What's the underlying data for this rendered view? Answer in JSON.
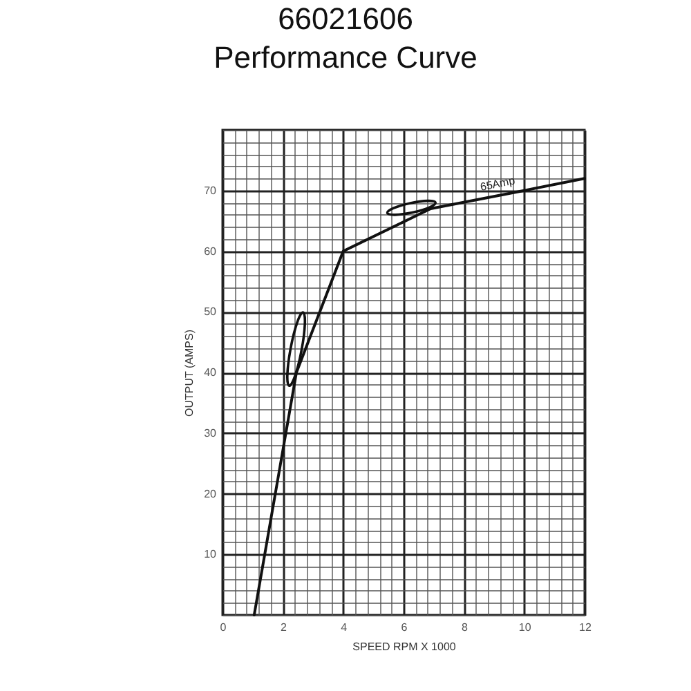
{
  "chart_data": {
    "type": "line",
    "title": "66021606",
    "subtitle": "Performance Curve",
    "xlabel": "SPEED RPM X 1000",
    "ylabel": "OUTPUT (AMPS)",
    "x": [
      1.05,
      1.75,
      2.45,
      4,
      6.9,
      10,
      12
    ],
    "series": [
      {
        "color": "#111111",
        "values": [
          0,
          20,
          40,
          60,
          67,
          70,
          72
        ]
      }
    ],
    "annotations": [
      "65Amp"
    ],
    "xlim": [
      0,
      12
    ],
    "ylim": [
      0,
      80
    ],
    "xticks": [
      0,
      {
        "value": 0.4,
        "label": null
      },
      {
        "value": 0.8,
        "label": null
      },
      {
        "value": 1.2,
        "label": null
      },
      {
        "value": 1.6,
        "label": null
      },
      2,
      {
        "value": 2.4,
        "label": null
      },
      {
        "value": 2.8,
        "label": null
      },
      {
        "value": 3.2,
        "label": null
      },
      {
        "value": 3.6,
        "label": null
      },
      4,
      {
        "value": 4.4,
        "label": null
      },
      {
        "value": 4.8,
        "label": null
      },
      {
        "value": 5.2,
        "label": null
      },
      {
        "value": 5.6,
        "label": null
      },
      6,
      {
        "value": 6.4,
        "label": null
      },
      {
        "value": 6.8,
        "label": null
      },
      {
        "value": 7.2,
        "label": null
      },
      {
        "value": 7.6,
        "label": null
      },
      8,
      {
        "value": 8.4,
        "label": null
      },
      {
        "value": 8.8,
        "label": null
      },
      {
        "value": 9.2,
        "label": null
      },
      {
        "value": 9.6,
        "label": null
      },
      10,
      {
        "value": 10.4,
        "label": null
      },
      {
        "value": 10.8,
        "label": null
      },
      {
        "value": 11.2,
        "label": null
      },
      {
        "value": 11.6,
        "label": null
      },
      12
    ],
    "yticks": [
      {
        "value": 0,
        "label": null
      },
      {
        "value": 2,
        "label": null
      },
      {
        "value": 4,
        "label": null
      },
      {
        "value": 6,
        "label": null
      },
      {
        "value": 8,
        "label": null
      },
      10,
      {
        "value": 12,
        "label": null
      },
      {
        "value": 14,
        "label": null
      },
      {
        "value": 16,
        "label": null
      },
      {
        "value": 18,
        "label": null
      },
      20,
      {
        "value": 22,
        "label": null
      },
      {
        "value": 24,
        "label": null
      },
      {
        "value": 26,
        "label": null
      },
      {
        "value": 28,
        "label": null
      },
      30,
      {
        "value": 32,
        "label": null
      },
      {
        "value": 34,
        "label": null
      },
      {
        "value": 36,
        "label": null
      },
      {
        "value": 38,
        "label": null
      },
      40,
      {
        "value": 42,
        "label": null
      },
      {
        "value": 44,
        "label": null
      },
      {
        "value": 46,
        "label": null
      },
      {
        "value": 48,
        "label": null
      },
      50,
      {
        "value": 52,
        "label": null
      },
      {
        "value": 54,
        "label": null
      },
      {
        "value": 56,
        "label": null
      },
      {
        "value": 58,
        "label": null
      },
      60,
      {
        "value": 62,
        "label": null
      },
      {
        "value": 64,
        "label": null
      },
      {
        "value": 66,
        "label": null
      },
      {
        "value": 68,
        "label": null
      },
      70,
      {
        "value": 72,
        "label": null
      },
      {
        "value": 74,
        "label": null
      },
      {
        "value": 76,
        "label": null
      },
      {
        "value": 78,
        "label": null
      },
      {
        "value": 80,
        "label": null
      }
    ],
    "grid": true
  }
}
